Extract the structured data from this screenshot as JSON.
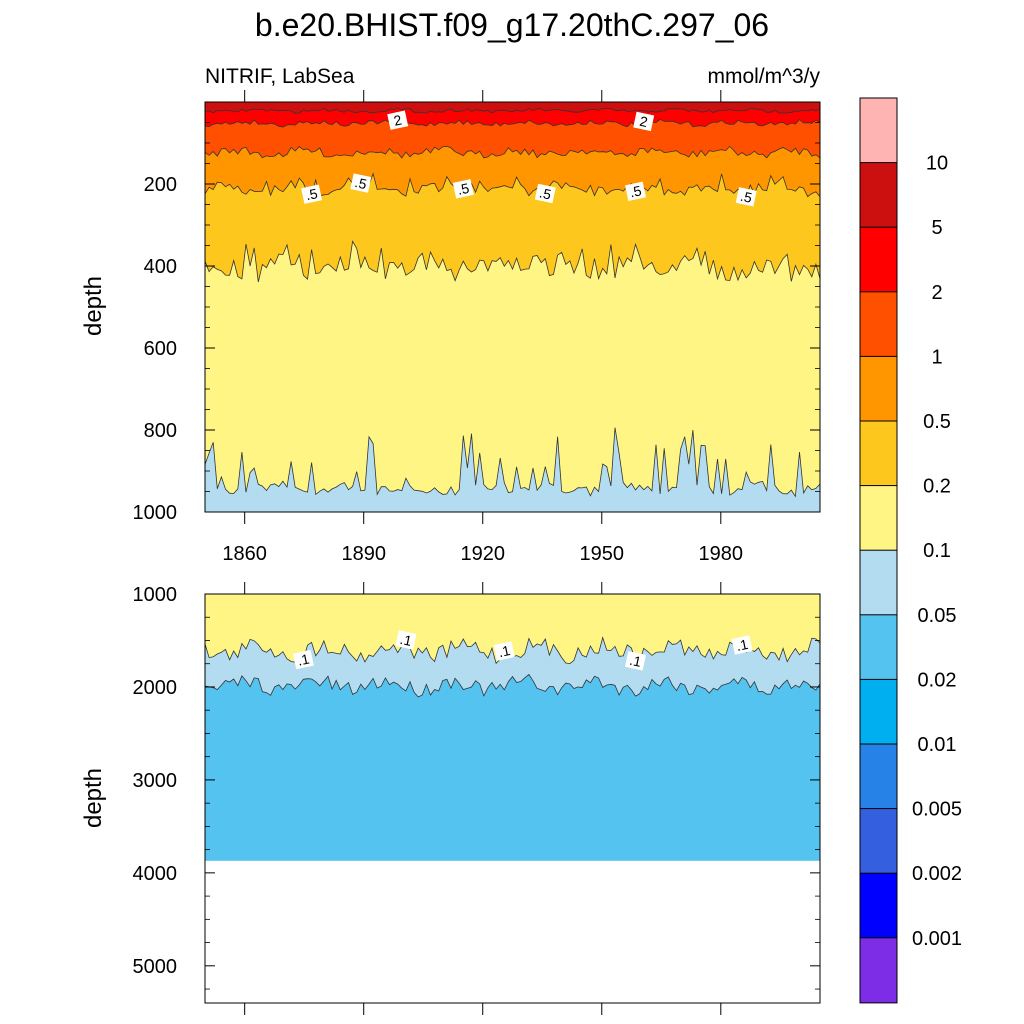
{
  "title": "b.e20.BHIST.f09_g17.20thC.297_06",
  "chart_data": [
    {
      "type": "heatmap",
      "subtype": "filled-contour",
      "left_label": "NITRIF, LabSea",
      "right_label": "mmol/m^3/y",
      "ylabel": "depth",
      "xlim": [
        1850,
        2005
      ],
      "ylim": [
        0,
        1000
      ],
      "x_ticks": [
        1860,
        1890,
        1920,
        1950,
        1980
      ],
      "y_ticks": [
        200,
        400,
        600,
        800,
        1000
      ],
      "approx_contour_depths": [
        {
          "level": 5,
          "depth": 20
        },
        {
          "level": 2,
          "depth": 50
        },
        {
          "level": 1,
          "depth": 120
        },
        {
          "level": 0.5,
          "depth": 210
        },
        {
          "level": 0.2,
          "depth": 400
        },
        {
          "level": 0.1,
          "depth": 940
        }
      ],
      "contour_labels": [
        "2",
        "2",
        ".5",
        ".5",
        ".5",
        ".5",
        ".5",
        ".5"
      ]
    },
    {
      "type": "heatmap",
      "subtype": "filled-contour",
      "ylabel": "depth",
      "xlim": [
        1850,
        2005
      ],
      "ylim": [
        1000,
        5400
      ],
      "x_ticks": [
        1860,
        1890,
        1920,
        1950,
        1980
      ],
      "y_ticks": [
        1000,
        2000,
        3000,
        4000,
        5000
      ],
      "bottom_depth": 3870,
      "approx_contour_depths": [
        {
          "level": 0.1,
          "depth": 1580
        },
        {
          "level": 0.05,
          "depth": 1960
        }
      ],
      "contour_labels": [
        ".1",
        ".1",
        ".1",
        ".1",
        ".1"
      ]
    }
  ],
  "colorbar": {
    "labels": [
      "10",
      "5",
      "2",
      "1",
      "0.5",
      "0.2",
      "0.1",
      "0.05",
      "0.02",
      "0.01",
      "0.005",
      "0.002",
      "0.001"
    ],
    "colors": [
      "#ffb4b4",
      "#cc1010",
      "#ff0000",
      "#ff5000",
      "#ff9600",
      "#fdc71e",
      "#fff585",
      "#b4dcf0",
      "#55c3f0",
      "#00aff0",
      "#2682e6",
      "#3460e0",
      "#0000ff",
      "#7d2de6"
    ]
  }
}
